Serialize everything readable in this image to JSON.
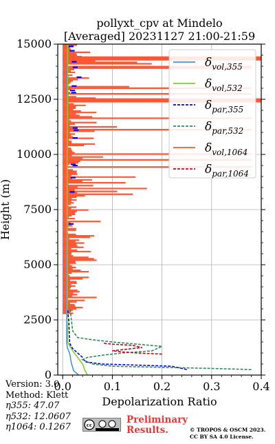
{
  "chart_data": {
    "type": "line",
    "title": "pollyxt_cpv at Mindelo",
    "subtitle": "[Averaged] 20231127 21:00-21:59",
    "xlabel": "Depolarization Ratio",
    "ylabel": "Height (m)",
    "xlim": [
      -0.01,
      0.4
    ],
    "ylim": [
      0,
      15000
    ],
    "xticks": [
      "0.0",
      "0.1",
      "0.2",
      "0.3",
      "0.4"
    ],
    "yticks": [
      "0",
      "2500",
      "5000",
      "7500",
      "10000",
      "12500",
      "15000"
    ],
    "grid": true,
    "legend_position": "top-right",
    "legend_labels": [
      "δvol,355",
      "δvol,532",
      "δpar,355",
      "δpar,532",
      "δvol,1064",
      "δpar,1064"
    ],
    "series": [
      {
        "name": "δvol,355",
        "color": "#4a90e2",
        "dash": "solid",
        "x": [
          0.032,
          0.022,
          0.018,
          0.016,
          0.015,
          0.012,
          0.01,
          0.009,
          0.008,
          0.008,
          0.008,
          0.009,
          0.009,
          0.009,
          0.008,
          0.009,
          0.01
        ],
        "y": [
          0,
          200,
          500,
          700,
          900,
          1100,
          1200,
          1300,
          1500,
          2500,
          5000,
          7500,
          10000,
          12000,
          13500,
          14500,
          15000
        ]
      },
      {
        "name": "δvol,532",
        "color": "#7ed321",
        "dash": "solid",
        "x": [
          0.05,
          0.045,
          0.04,
          0.03,
          0.02,
          0.012,
          0.01,
          0.01,
          0.009,
          0.009,
          0.009,
          0.009,
          0.01,
          0.01,
          0.01
        ],
        "y": [
          0,
          200,
          500,
          800,
          1100,
          1400,
          1500,
          2000,
          2500,
          5000,
          7500,
          10000,
          12500,
          14000,
          15000
        ]
      },
      {
        "name": "δpar,355",
        "color": "#0000ff",
        "dash": "dashed",
        "x": [
          0.25,
          0.22,
          0.08,
          0.045,
          0.04,
          0.03,
          0.025,
          0.02,
          0.015,
          0.014,
          0.013,
          0.012,
          0.01
        ],
        "y": [
          250,
          400,
          500,
          600,
          800,
          1000,
          1100,
          1200,
          1400,
          1500,
          2000,
          2500,
          3000
        ]
      },
      {
        "name": "δpar,532",
        "color": "#2e8b57",
        "dash": "dashed",
        "x": [
          0.38,
          0.3,
          0.1,
          0.06,
          0.05,
          0.04,
          0.05,
          0.08,
          0.12,
          0.18,
          0.2,
          0.15,
          0.1,
          0.06,
          0.03,
          0.02,
          0.015
        ],
        "y": [
          250,
          300,
          400,
          500,
          600,
          700,
          800,
          900,
          1000,
          1100,
          1300,
          1400,
          1500,
          1600,
          1700,
          2000,
          3000
        ]
      },
      {
        "name": "δvol,1064",
        "color": "#ff5733",
        "dash": "solid",
        "x": [],
        "y": []
      },
      {
        "name": "δpar,1064",
        "color": "#d0021b",
        "dash": "dashed",
        "x": [
          0.2,
          0.15,
          0.12,
          0.1,
          0.12,
          0.16,
          0.14,
          0.1,
          0.08
        ],
        "y": [
          950,
          1000,
          1050,
          1100,
          1150,
          1250,
          1350,
          1400,
          1450
        ]
      }
    ]
  },
  "annotations": {
    "version": "Version: 3.0",
    "method": "Method: Klett",
    "eta355": "η355:  47.07",
    "eta532": "η532: 12.0607",
    "eta1064": "η1064: 0.1267"
  },
  "footer": {
    "preliminary_line1": "Preliminary",
    "preliminary_line2": "Results.",
    "copyright_line1": "© TROPOS & OSCM 2023.",
    "copyright_line2": "CC BY SA 4.0 License.",
    "cc_logo": "cc by sa"
  }
}
